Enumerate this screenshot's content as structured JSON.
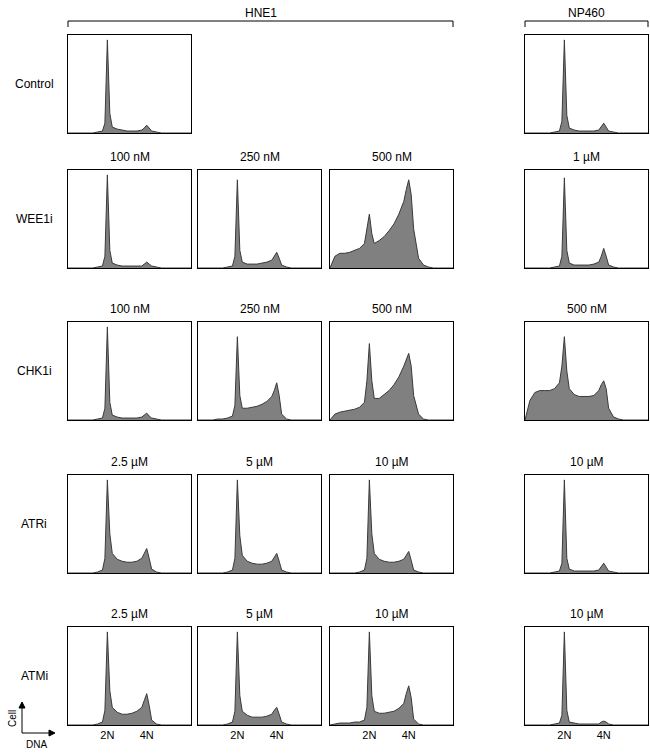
{
  "figure": {
    "column_headers": [
      "HNE1",
      "NP460"
    ],
    "row_labels": [
      "Control",
      "WEE1i",
      "CHK1i",
      "ATRi",
      "ATMi"
    ],
    "x_label": "DNA",
    "y_label": "Cell"
  },
  "chart_data": [
    {
      "type": "area",
      "row": "Control",
      "column": "HNE1",
      "color": "#808080",
      "xlim": [
        0,
        6.25
      ],
      "ylim": [
        0,
        100
      ],
      "tick_labels": false,
      "x": [
        0,
        0.25,
        0.5,
        0.75,
        1,
        1.25,
        1.5,
        1.75,
        1.875,
        2,
        2.125,
        2.25,
        2.5,
        2.75,
        3,
        3.25,
        3.5,
        3.75,
        3.875,
        4,
        4.125,
        4.25,
        4.5,
        4.75,
        5,
        5.25,
        5.5,
        5.75,
        6,
        6.25
      ],
      "values": [
        0,
        0,
        0,
        0,
        0,
        0,
        1,
        2,
        10,
        95,
        20,
        6,
        4,
        3,
        2,
        2,
        2,
        3,
        5,
        8,
        5,
        2,
        1,
        0,
        0,
        0,
        0,
        0,
        0,
        0
      ]
    },
    {
      "type": "area",
      "row": "Control",
      "column": "NP460",
      "color": "#808080",
      "xlim": [
        0,
        6.25
      ],
      "ylim": [
        0,
        100
      ],
      "tick_labels": false,
      "x": [
        0,
        0.25,
        0.5,
        0.75,
        1,
        1.25,
        1.5,
        1.75,
        1.875,
        2,
        2.125,
        2.25,
        2.5,
        2.75,
        3,
        3.25,
        3.5,
        3.75,
        3.875,
        4,
        4.125,
        4.25,
        4.5,
        4.75,
        5,
        5.25,
        5.5,
        5.75,
        6,
        6.25
      ],
      "values": [
        0,
        0,
        0,
        0,
        0,
        0,
        1,
        2,
        12,
        95,
        18,
        5,
        3,
        2,
        2,
        2,
        2,
        3,
        6,
        10,
        6,
        2,
        1,
        0,
        0,
        0,
        0,
        0,
        0,
        0
      ]
    },
    {
      "type": "area",
      "row": "WEE1i",
      "column": "HNE1",
      "title": "100 nM",
      "color": "#808080",
      "xlim": [
        0,
        6.25
      ],
      "ylim": [
        0,
        100
      ],
      "tick_labels": false,
      "x": [
        0,
        0.25,
        0.5,
        0.75,
        1,
        1.25,
        1.5,
        1.75,
        1.875,
        2,
        2.125,
        2.25,
        2.5,
        2.75,
        3,
        3.25,
        3.5,
        3.75,
        3.875,
        4,
        4.125,
        4.25,
        4.5,
        4.75,
        5,
        5.25,
        5.5,
        5.75,
        6,
        6.25
      ],
      "values": [
        0,
        0,
        0,
        0,
        0,
        0,
        1,
        2,
        12,
        95,
        18,
        5,
        3,
        2,
        2,
        2,
        2,
        2,
        4,
        6,
        4,
        2,
        1,
        0,
        0,
        0,
        0,
        0,
        0,
        0
      ]
    },
    {
      "type": "area",
      "row": "WEE1i",
      "column": "HNE1",
      "title": "250 nM",
      "color": "#808080",
      "xlim": [
        0,
        6.25
      ],
      "ylim": [
        0,
        100
      ],
      "tick_labels": false,
      "x": [
        0,
        0.25,
        0.5,
        0.75,
        1,
        1.25,
        1.5,
        1.75,
        1.875,
        2,
        2.125,
        2.25,
        2.5,
        2.75,
        3,
        3.25,
        3.5,
        3.75,
        3.875,
        4,
        4.125,
        4.25,
        4.5,
        4.75,
        5,
        5.25,
        5.5,
        5.75,
        6,
        6.25
      ],
      "values": [
        0,
        0,
        0,
        0,
        0,
        0,
        1,
        2,
        12,
        90,
        18,
        6,
        4,
        4,
        4,
        5,
        6,
        8,
        12,
        16,
        10,
        3,
        1,
        0,
        0,
        0,
        0,
        0,
        0,
        0
      ]
    },
    {
      "type": "area",
      "row": "WEE1i",
      "column": "HNE1",
      "title": "500 nM",
      "color": "#808080",
      "xlim": [
        0,
        6.25
      ],
      "ylim": [
        0,
        100
      ],
      "tick_labels": false,
      "x": [
        0,
        0.25,
        0.5,
        0.75,
        1,
        1.25,
        1.5,
        1.75,
        1.875,
        2,
        2.125,
        2.25,
        2.5,
        2.75,
        3,
        3.25,
        3.5,
        3.75,
        3.875,
        4,
        4.125,
        4.25,
        4.5,
        4.75,
        5,
        5.25,
        5.5,
        5.75,
        6,
        6.25
      ],
      "values": [
        0,
        12,
        15,
        15,
        16,
        18,
        20,
        25,
        40,
        55,
        35,
        25,
        28,
        32,
        38,
        45,
        55,
        68,
        80,
        90,
        75,
        40,
        10,
        3,
        1,
        0,
        0,
        0,
        0,
        0
      ]
    },
    {
      "type": "area",
      "row": "WEE1i",
      "column": "NP460",
      "title": "1 µM",
      "color": "#808080",
      "xlim": [
        0,
        6.25
      ],
      "ylim": [
        0,
        100
      ],
      "tick_labels": false,
      "x": [
        0,
        0.25,
        0.5,
        0.75,
        1,
        1.25,
        1.5,
        1.75,
        1.875,
        2,
        2.125,
        2.25,
        2.5,
        2.75,
        3,
        3.25,
        3.5,
        3.75,
        3.875,
        4,
        4.125,
        4.25,
        4.5,
        4.75,
        5,
        5.25,
        5.5,
        5.75,
        6,
        6.25
      ],
      "values": [
        0,
        0,
        0,
        0,
        0,
        0,
        1,
        2,
        12,
        92,
        18,
        5,
        3,
        3,
        3,
        3,
        4,
        6,
        12,
        20,
        12,
        3,
        1,
        0,
        0,
        0,
        0,
        0,
        0,
        0
      ]
    },
    {
      "type": "area",
      "row": "CHK1i",
      "column": "HNE1",
      "title": "100 nM",
      "color": "#808080",
      "xlim": [
        0,
        6.25
      ],
      "ylim": [
        0,
        100
      ],
      "tick_labels": false,
      "x": [
        0,
        0.25,
        0.5,
        0.75,
        1,
        1.25,
        1.5,
        1.75,
        1.875,
        2,
        2.125,
        2.25,
        2.5,
        2.75,
        3,
        3.25,
        3.5,
        3.75,
        3.875,
        4,
        4.125,
        4.25,
        4.5,
        4.75,
        5,
        5.25,
        5.5,
        5.75,
        6,
        6.25
      ],
      "values": [
        0,
        0,
        0,
        0,
        0,
        0,
        1,
        2,
        12,
        95,
        18,
        5,
        3,
        2,
        2,
        2,
        2,
        3,
        5,
        7,
        4,
        2,
        1,
        0,
        0,
        0,
        0,
        0,
        0,
        0
      ]
    },
    {
      "type": "area",
      "row": "CHK1i",
      "column": "HNE1",
      "title": "250 nM",
      "color": "#808080",
      "xlim": [
        0,
        6.25
      ],
      "ylim": [
        0,
        100
      ],
      "tick_labels": false,
      "x": [
        0,
        0.25,
        0.5,
        0.75,
        1,
        1.25,
        1.5,
        1.75,
        1.875,
        2,
        2.125,
        2.25,
        2.5,
        2.75,
        3,
        3.25,
        3.5,
        3.75,
        3.875,
        4,
        4.125,
        4.25,
        4.5,
        4.75,
        5,
        5.25,
        5.5,
        5.75,
        6,
        6.25
      ],
      "values": [
        0,
        0,
        0,
        0,
        1,
        1,
        2,
        4,
        15,
        85,
        25,
        12,
        12,
        13,
        14,
        16,
        19,
        24,
        30,
        38,
        25,
        6,
        1,
        0,
        0,
        0,
        0,
        0,
        0,
        0
      ]
    },
    {
      "type": "area",
      "row": "CHK1i",
      "column": "HNE1",
      "title": "500 nM",
      "color": "#808080",
      "xlim": [
        0,
        6.25
      ],
      "ylim": [
        0,
        100
      ],
      "tick_labels": false,
      "x": [
        0,
        0.25,
        0.5,
        0.75,
        1,
        1.25,
        1.5,
        1.75,
        1.875,
        2,
        2.125,
        2.25,
        2.5,
        2.75,
        3,
        3.25,
        3.5,
        3.75,
        3.875,
        4,
        4.125,
        4.25,
        4.5,
        4.75,
        5,
        5.25,
        5.5,
        5.75,
        6,
        6.25
      ],
      "values": [
        0,
        6,
        8,
        9,
        10,
        11,
        13,
        18,
        40,
        78,
        40,
        22,
        22,
        26,
        30,
        36,
        44,
        55,
        62,
        68,
        55,
        25,
        6,
        1,
        0,
        0,
        0,
        0,
        0,
        0
      ]
    },
    {
      "type": "area",
      "row": "CHK1i",
      "column": "NP460",
      "title": "500 nM",
      "color": "#808080",
      "xlim": [
        0,
        6.25
      ],
      "ylim": [
        0,
        100
      ],
      "tick_labels": false,
      "x": [
        0,
        0.25,
        0.5,
        0.75,
        1,
        1.25,
        1.5,
        1.75,
        1.875,
        2,
        2.125,
        2.25,
        2.5,
        2.75,
        3,
        3.25,
        3.5,
        3.75,
        3.875,
        4,
        4.125,
        4.25,
        4.5,
        4.75,
        5,
        5.25,
        5.5,
        5.75,
        6,
        6.25
      ],
      "values": [
        0,
        20,
        28,
        30,
        30,
        30,
        32,
        38,
        55,
        85,
        50,
        32,
        26,
        24,
        24,
        24,
        25,
        30,
        36,
        40,
        32,
        12,
        3,
        1,
        0,
        0,
        0,
        0,
        0,
        0
      ]
    },
    {
      "type": "area",
      "row": "ATRi",
      "column": "HNE1",
      "title": "2.5 µM",
      "color": "#808080",
      "xlim": [
        0,
        6.25
      ],
      "ylim": [
        0,
        100
      ],
      "tick_labels": false,
      "x": [
        0,
        0.25,
        0.5,
        0.75,
        1,
        1.25,
        1.5,
        1.75,
        1.875,
        2,
        2.125,
        2.25,
        2.5,
        2.75,
        3,
        3.25,
        3.5,
        3.75,
        3.875,
        4,
        4.125,
        4.25,
        4.5,
        4.75,
        5,
        5.25,
        5.5,
        5.75,
        6,
        6.25
      ],
      "values": [
        0,
        0,
        0,
        0,
        0,
        0,
        1,
        3,
        15,
        95,
        40,
        20,
        14,
        12,
        11,
        11,
        12,
        15,
        20,
        25,
        15,
        4,
        1,
        0,
        0,
        0,
        0,
        0,
        0,
        0
      ]
    },
    {
      "type": "area",
      "row": "ATRi",
      "column": "HNE1",
      "title": "5 µM",
      "color": "#808080",
      "xlim": [
        0,
        6.25
      ],
      "ylim": [
        0,
        100
      ],
      "tick_labels": false,
      "x": [
        0,
        0.25,
        0.5,
        0.75,
        1,
        1.25,
        1.5,
        1.75,
        1.875,
        2,
        2.125,
        2.25,
        2.5,
        2.75,
        3,
        3.25,
        3.5,
        3.75,
        3.875,
        4,
        4.125,
        4.25,
        4.5,
        4.75,
        5,
        5.25,
        5.5,
        5.75,
        6,
        6.25
      ],
      "values": [
        0,
        0,
        0,
        0,
        0,
        0,
        1,
        3,
        15,
        95,
        38,
        18,
        12,
        10,
        9,
        9,
        10,
        12,
        16,
        20,
        12,
        3,
        1,
        0,
        0,
        0,
        0,
        0,
        0,
        0
      ]
    },
    {
      "type": "area",
      "row": "ATRi",
      "column": "HNE1",
      "title": "10 µM",
      "color": "#808080",
      "xlim": [
        0,
        6.25
      ],
      "ylim": [
        0,
        100
      ],
      "tick_labels": false,
      "x": [
        0,
        0.25,
        0.5,
        0.75,
        1,
        1.25,
        1.5,
        1.75,
        1.875,
        2,
        2.125,
        2.25,
        2.5,
        2.75,
        3,
        3.25,
        3.5,
        3.75,
        3.875,
        4,
        4.125,
        4.25,
        4.5,
        4.75,
        5,
        5.25,
        5.5,
        5.75,
        6,
        6.25
      ],
      "values": [
        0,
        0,
        0,
        0,
        0,
        0,
        1,
        3,
        15,
        95,
        40,
        20,
        14,
        12,
        11,
        11,
        12,
        14,
        18,
        22,
        13,
        3,
        1,
        0,
        0,
        0,
        0,
        0,
        0,
        0
      ]
    },
    {
      "type": "area",
      "row": "ATRi",
      "column": "NP460",
      "title": "10 µM",
      "color": "#808080",
      "xlim": [
        0,
        6.25
      ],
      "ylim": [
        0,
        100
      ],
      "tick_labels": false,
      "x": [
        0,
        0.25,
        0.5,
        0.75,
        1,
        1.25,
        1.5,
        1.75,
        1.875,
        2,
        2.125,
        2.25,
        2.5,
        2.75,
        3,
        3.25,
        3.5,
        3.75,
        3.875,
        4,
        4.125,
        4.25,
        4.5,
        4.75,
        5,
        5.25,
        5.5,
        5.75,
        6,
        6.25
      ],
      "values": [
        0,
        0,
        0,
        0,
        0,
        0,
        1,
        2,
        10,
        95,
        15,
        4,
        2,
        2,
        2,
        2,
        2,
        3,
        6,
        10,
        6,
        2,
        1,
        0,
        0,
        0,
        0,
        0,
        0,
        0
      ]
    },
    {
      "type": "area",
      "row": "ATMi",
      "column": "HNE1",
      "title": "2.5 µM",
      "color": "#808080",
      "xlim": [
        0,
        6.25
      ],
      "ylim": [
        0,
        100
      ],
      "tick_labels": "x",
      "xticks": [
        {
          "value": 2,
          "label": "2N"
        },
        {
          "value": 4,
          "label": "4N"
        }
      ],
      "x": [
        0,
        0.25,
        0.5,
        0.75,
        1,
        1.25,
        1.5,
        1.75,
        1.875,
        2,
        2.125,
        2.25,
        2.5,
        2.75,
        3,
        3.25,
        3.5,
        3.75,
        3.875,
        4,
        4.125,
        4.25,
        4.5,
        4.75,
        5,
        5.25,
        5.5,
        5.75,
        6,
        6.25
      ],
      "values": [
        0,
        0,
        0,
        0,
        0,
        0,
        1,
        3,
        15,
        95,
        35,
        18,
        13,
        11,
        11,
        12,
        14,
        18,
        25,
        32,
        20,
        5,
        1,
        0,
        0,
        0,
        0,
        0,
        0,
        0
      ]
    },
    {
      "type": "area",
      "row": "ATMi",
      "column": "HNE1",
      "title": "5 µM",
      "color": "#808080",
      "xlim": [
        0,
        6.25
      ],
      "ylim": [
        0,
        100
      ],
      "tick_labels": "x",
      "xticks": [
        {
          "value": 2,
          "label": "2N"
        },
        {
          "value": 4,
          "label": "4N"
        }
      ],
      "x": [
        0,
        0.25,
        0.5,
        0.75,
        1,
        1.25,
        1.5,
        1.75,
        1.875,
        2,
        2.125,
        2.25,
        2.5,
        2.75,
        3,
        3.25,
        3.5,
        3.75,
        3.875,
        4,
        4.125,
        4.25,
        4.5,
        4.75,
        5,
        5.25,
        5.5,
        5.75,
        6,
        6.25
      ],
      "values": [
        0,
        0,
        0,
        0,
        0,
        0,
        1,
        3,
        14,
        95,
        30,
        14,
        10,
        8,
        8,
        8,
        9,
        11,
        15,
        18,
        11,
        3,
        1,
        0,
        0,
        0,
        0,
        0,
        0,
        0
      ]
    },
    {
      "type": "area",
      "row": "ATMi",
      "column": "HNE1",
      "title": "10 µM",
      "color": "#808080",
      "xlim": [
        0,
        6.25
      ],
      "ylim": [
        0,
        100
      ],
      "tick_labels": "x",
      "xticks": [
        {
          "value": 2,
          "label": "2N"
        },
        {
          "value": 4,
          "label": "4N"
        }
      ],
      "x": [
        0,
        0.25,
        0.5,
        0.75,
        1,
        1.25,
        1.5,
        1.75,
        1.875,
        2,
        2.125,
        2.25,
        2.5,
        2.75,
        3,
        3.25,
        3.5,
        3.75,
        3.875,
        4,
        4.125,
        4.25,
        4.5,
        4.75,
        5,
        5.25,
        5.5,
        5.75,
        6,
        6.25
      ],
      "values": [
        0,
        1,
        2,
        2,
        2,
        3,
        3,
        5,
        18,
        95,
        30,
        14,
        12,
        12,
        13,
        14,
        17,
        22,
        32,
        40,
        28,
        6,
        1,
        0,
        0,
        0,
        0,
        0,
        0,
        0
      ]
    },
    {
      "type": "area",
      "row": "ATMi",
      "column": "NP460",
      "title": "10 µM",
      "color": "#808080",
      "xlim": [
        0,
        6.25
      ],
      "ylim": [
        0,
        100
      ],
      "tick_labels": "x",
      "xticks": [
        {
          "value": 2,
          "label": "2N"
        },
        {
          "value": 4,
          "label": "4N"
        }
      ],
      "x": [
        0,
        0.25,
        0.5,
        0.75,
        1,
        1.25,
        1.5,
        1.75,
        1.875,
        2,
        2.125,
        2.25,
        2.5,
        2.75,
        3,
        3.25,
        3.5,
        3.75,
        3.875,
        4,
        4.125,
        4.25,
        4.5,
        4.75,
        5,
        5.25,
        5.5,
        5.75,
        6,
        6.25
      ],
      "values": [
        0,
        0,
        0,
        0,
        0,
        0,
        1,
        2,
        10,
        95,
        15,
        3,
        2,
        1,
        1,
        1,
        1,
        1,
        3,
        4,
        3,
        1,
        0,
        0,
        0,
        0,
        0,
        0,
        0,
        0
      ]
    }
  ]
}
